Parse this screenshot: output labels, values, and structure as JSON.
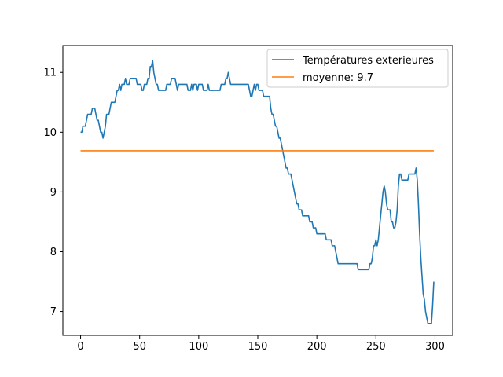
{
  "chart_data": {
    "type": "line",
    "x_ticks": [
      0,
      50,
      100,
      150,
      200,
      250,
      300
    ],
    "y_ticks": [
      7,
      8,
      9,
      10,
      11
    ],
    "xlim": [
      -15,
      315
    ],
    "ylim": [
      6.6,
      11.45
    ],
    "grid": false,
    "legend_position": "top-right",
    "series": [
      {
        "name": "Températures exterieures",
        "color": "#1f77b4",
        "points": [
          [
            0,
            10.0
          ],
          [
            1,
            10.0
          ],
          [
            2,
            10.1
          ],
          [
            4,
            10.1
          ],
          [
            5,
            10.2
          ],
          [
            6,
            10.3
          ],
          [
            9,
            10.3
          ],
          [
            10,
            10.4
          ],
          [
            12,
            10.4
          ],
          [
            13,
            10.3
          ],
          [
            14,
            10.2
          ],
          [
            15,
            10.2
          ],
          [
            16,
            10.1
          ],
          [
            17,
            10.0
          ],
          [
            18,
            10.0
          ],
          [
            19,
            9.9
          ],
          [
            20,
            10.0
          ],
          [
            21,
            10.1
          ],
          [
            22,
            10.3
          ],
          [
            24,
            10.3
          ],
          [
            25,
            10.4
          ],
          [
            26,
            10.5
          ],
          [
            29,
            10.5
          ],
          [
            30,
            10.6
          ],
          [
            31,
            10.7
          ],
          [
            32,
            10.7
          ],
          [
            33,
            10.8
          ],
          [
            34,
            10.7
          ],
          [
            35,
            10.8
          ],
          [
            37,
            10.8
          ],
          [
            38,
            10.9
          ],
          [
            39,
            10.8
          ],
          [
            41,
            10.8
          ],
          [
            42,
            10.9
          ],
          [
            47,
            10.9
          ],
          [
            48,
            10.8
          ],
          [
            51,
            10.8
          ],
          [
            52,
            10.7
          ],
          [
            53,
            10.7
          ],
          [
            54,
            10.8
          ],
          [
            56,
            10.8
          ],
          [
            57,
            10.9
          ],
          [
            58,
            10.9
          ],
          [
            59,
            11.1
          ],
          [
            60,
            11.1
          ],
          [
            61,
            11.2
          ],
          [
            62,
            11.0
          ],
          [
            63,
            10.9
          ],
          [
            64,
            10.8
          ],
          [
            65,
            10.8
          ],
          [
            66,
            10.7
          ],
          [
            72,
            10.7
          ],
          [
            73,
            10.8
          ],
          [
            76,
            10.8
          ],
          [
            77,
            10.9
          ],
          [
            80,
            10.9
          ],
          [
            81,
            10.8
          ],
          [
            82,
            10.7
          ],
          [
            83,
            10.8
          ],
          [
            90,
            10.8
          ],
          [
            91,
            10.7
          ],
          [
            93,
            10.7
          ],
          [
            94,
            10.8
          ],
          [
            95,
            10.7
          ],
          [
            96,
            10.8
          ],
          [
            98,
            10.8
          ],
          [
            99,
            10.7
          ],
          [
            100,
            10.8
          ],
          [
            103,
            10.8
          ],
          [
            104,
            10.7
          ],
          [
            107,
            10.7
          ],
          [
            108,
            10.8
          ],
          [
            109,
            10.7
          ],
          [
            118,
            10.7
          ],
          [
            119,
            10.8
          ],
          [
            122,
            10.8
          ],
          [
            123,
            10.9
          ],
          [
            124,
            10.9
          ],
          [
            125,
            11.0
          ],
          [
            126,
            10.9
          ],
          [
            127,
            10.8
          ],
          [
            142,
            10.8
          ],
          [
            143,
            10.7
          ],
          [
            144,
            10.6
          ],
          [
            145,
            10.6
          ],
          [
            146,
            10.7
          ],
          [
            147,
            10.8
          ],
          [
            148,
            10.7
          ],
          [
            149,
            10.8
          ],
          [
            150,
            10.8
          ],
          [
            151,
            10.7
          ],
          [
            154,
            10.7
          ],
          [
            155,
            10.6
          ],
          [
            160,
            10.6
          ],
          [
            161,
            10.4
          ],
          [
            162,
            10.3
          ],
          [
            163,
            10.3
          ],
          [
            164,
            10.2
          ],
          [
            165,
            10.1
          ],
          [
            166,
            10.1
          ],
          [
            167,
            10.0
          ],
          [
            168,
            9.9
          ],
          [
            169,
            9.9
          ],
          [
            170,
            9.8
          ],
          [
            171,
            9.7
          ],
          [
            172,
            9.6
          ],
          [
            173,
            9.5
          ],
          [
            174,
            9.4
          ],
          [
            175,
            9.4
          ],
          [
            176,
            9.3
          ],
          [
            178,
            9.3
          ],
          [
            179,
            9.2
          ],
          [
            180,
            9.1
          ],
          [
            181,
            9.0
          ],
          [
            182,
            8.9
          ],
          [
            183,
            8.8
          ],
          [
            184,
            8.8
          ],
          [
            185,
            8.7
          ],
          [
            187,
            8.7
          ],
          [
            188,
            8.6
          ],
          [
            193,
            8.6
          ],
          [
            194,
            8.5
          ],
          [
            196,
            8.5
          ],
          [
            197,
            8.4
          ],
          [
            199,
            8.4
          ],
          [
            200,
            8.3
          ],
          [
            207,
            8.3
          ],
          [
            208,
            8.2
          ],
          [
            212,
            8.2
          ],
          [
            213,
            8.1
          ],
          [
            215,
            8.1
          ],
          [
            216,
            8.0
          ],
          [
            217,
            7.9
          ],
          [
            218,
            7.8
          ],
          [
            234,
            7.8
          ],
          [
            235,
            7.7
          ],
          [
            244,
            7.7
          ],
          [
            245,
            7.8
          ],
          [
            246,
            7.8
          ],
          [
            247,
            7.9
          ],
          [
            248,
            8.1
          ],
          [
            249,
            8.1
          ],
          [
            250,
            8.2
          ],
          [
            251,
            8.1
          ],
          [
            252,
            8.2
          ],
          [
            253,
            8.4
          ],
          [
            254,
            8.6
          ],
          [
            255,
            8.8
          ],
          [
            256,
            9.0
          ],
          [
            257,
            9.1
          ],
          [
            258,
            9.0
          ],
          [
            259,
            8.8
          ],
          [
            260,
            8.7
          ],
          [
            262,
            8.7
          ],
          [
            263,
            8.5
          ],
          [
            264,
            8.5
          ],
          [
            265,
            8.4
          ],
          [
            266,
            8.4
          ],
          [
            267,
            8.5
          ],
          [
            268,
            8.7
          ],
          [
            269,
            9.1
          ],
          [
            270,
            9.3
          ],
          [
            271,
            9.3
          ],
          [
            272,
            9.2
          ],
          [
            277,
            9.2
          ],
          [
            278,
            9.3
          ],
          [
            283,
            9.3
          ],
          [
            284,
            9.4
          ],
          [
            285,
            9.2
          ],
          [
            286,
            8.8
          ],
          [
            287,
            8.3
          ],
          [
            288,
            7.9
          ],
          [
            289,
            7.6
          ],
          [
            290,
            7.3
          ],
          [
            291,
            7.2
          ],
          [
            292,
            7.0
          ],
          [
            293,
            6.9
          ],
          [
            294,
            6.8
          ],
          [
            297,
            6.8
          ],
          [
            298,
            7.1
          ],
          [
            299,
            7.5
          ]
        ]
      },
      {
        "name": "moyenne: 9.7",
        "color": "#ff7f0e",
        "points": [
          [
            0,
            9.69
          ],
          [
            299,
            9.69
          ]
        ]
      }
    ]
  }
}
